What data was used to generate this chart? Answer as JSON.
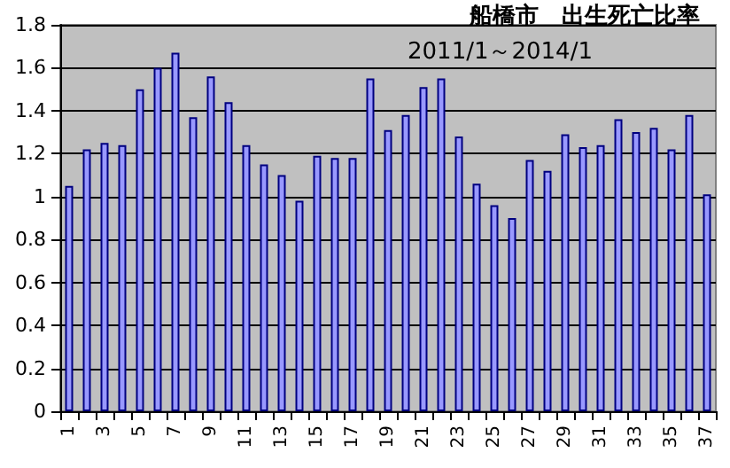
{
  "chart_data": {
    "type": "bar",
    "title": "船橋市　出生死亡比率",
    "subtitle": "2011/1～2014/1",
    "categories": [
      "1",
      null,
      "3",
      null,
      "5",
      null,
      "7",
      null,
      "9",
      null,
      "11",
      null,
      "13",
      null,
      "15",
      null,
      "17",
      null,
      "19",
      null,
      "21",
      null,
      "23",
      null,
      "25",
      null,
      "27",
      null,
      "29",
      null,
      "31",
      null,
      "33",
      null,
      "35",
      null,
      "37"
    ],
    "values": [
      1.05,
      1.22,
      1.25,
      1.24,
      1.5,
      1.6,
      1.67,
      1.37,
      1.56,
      1.44,
      1.24,
      1.15,
      1.1,
      0.98,
      1.19,
      1.18,
      1.18,
      1.55,
      1.31,
      1.38,
      1.51,
      1.55,
      1.28,
      1.06,
      0.96,
      0.9,
      1.17,
      1.12,
      1.29,
      1.23,
      1.24,
      1.36,
      1.3,
      1.32,
      1.22,
      1.38,
      1.01
    ],
    "color": "#9999ff",
    "ylim": [
      0,
      1.8
    ],
    "yticks": [
      0,
      0.2,
      0.4,
      0.6,
      0.8,
      1,
      1.2,
      1.4,
      1.6,
      1.8
    ],
    "grid": true
  }
}
